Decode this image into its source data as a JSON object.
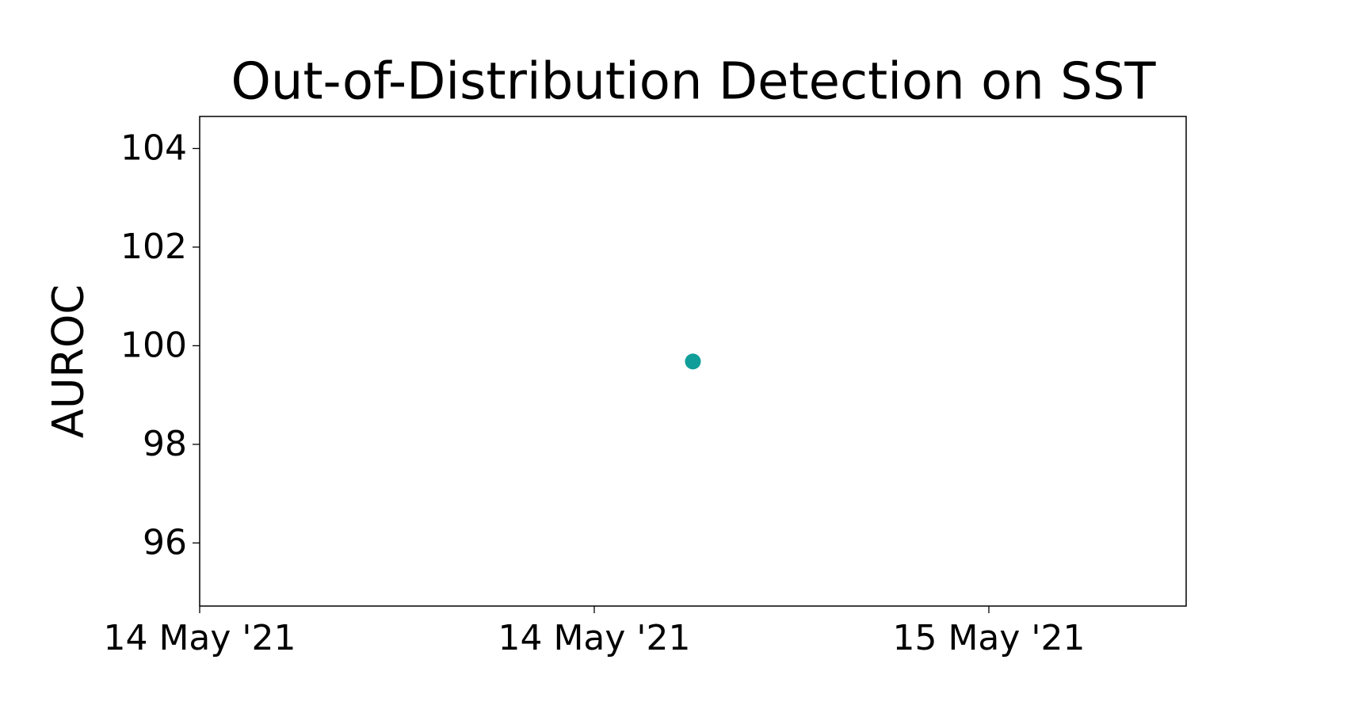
{
  "chart_data": {
    "type": "scatter",
    "title": "Out-of-Distribution Detection on SST",
    "ylabel": "AUROC",
    "x": [
      14.625
    ],
    "values": [
      99.68
    ],
    "color": "#0f9e99",
    "xlim": [
      14,
      15.25
    ],
    "xticks": [
      {
        "value": 14,
        "label": "14 May '21"
      },
      {
        "value": 14.5,
        "label": "14 May '21"
      },
      {
        "value": 15,
        "label": "15 May '21"
      }
    ],
    "ylim": [
      94.72,
      104.65
    ],
    "yticks": [
      96,
      98,
      100,
      102,
      104
    ],
    "grid": false
  }
}
